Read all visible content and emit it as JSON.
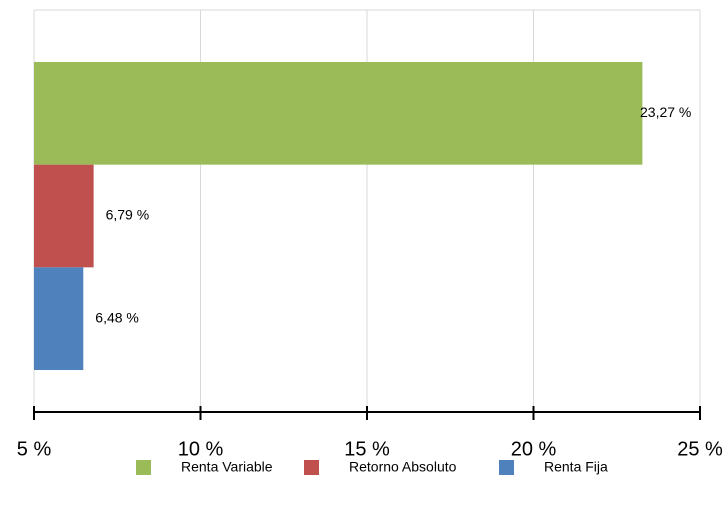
{
  "chart_data": {
    "type": "barh",
    "series": [
      {
        "name": "Renta Variable",
        "color": "#9bbb59",
        "values": [
          23.27
        ],
        "value_labels": [
          "23,27 %"
        ]
      },
      {
        "name": "Retorno Absoluto",
        "color": "#c0504d",
        "values": [
          6.79
        ],
        "value_labels": [
          "6,79 %"
        ]
      },
      {
        "name": "Renta Fija",
        "color": "#4f81bd",
        "values": [
          6.48
        ],
        "value_labels": [
          "6,48 %"
        ]
      }
    ],
    "xlim": [
      5,
      25
    ],
    "xticks": [
      {
        "value": 5,
        "label": "5 %"
      },
      {
        "value": 10,
        "label": "10 %"
      },
      {
        "value": 15,
        "label": "15 %"
      },
      {
        "value": 20,
        "label": "20 %"
      },
      {
        "value": 25,
        "label": "25 %"
      }
    ],
    "grid": true,
    "legend": "bottom"
  }
}
